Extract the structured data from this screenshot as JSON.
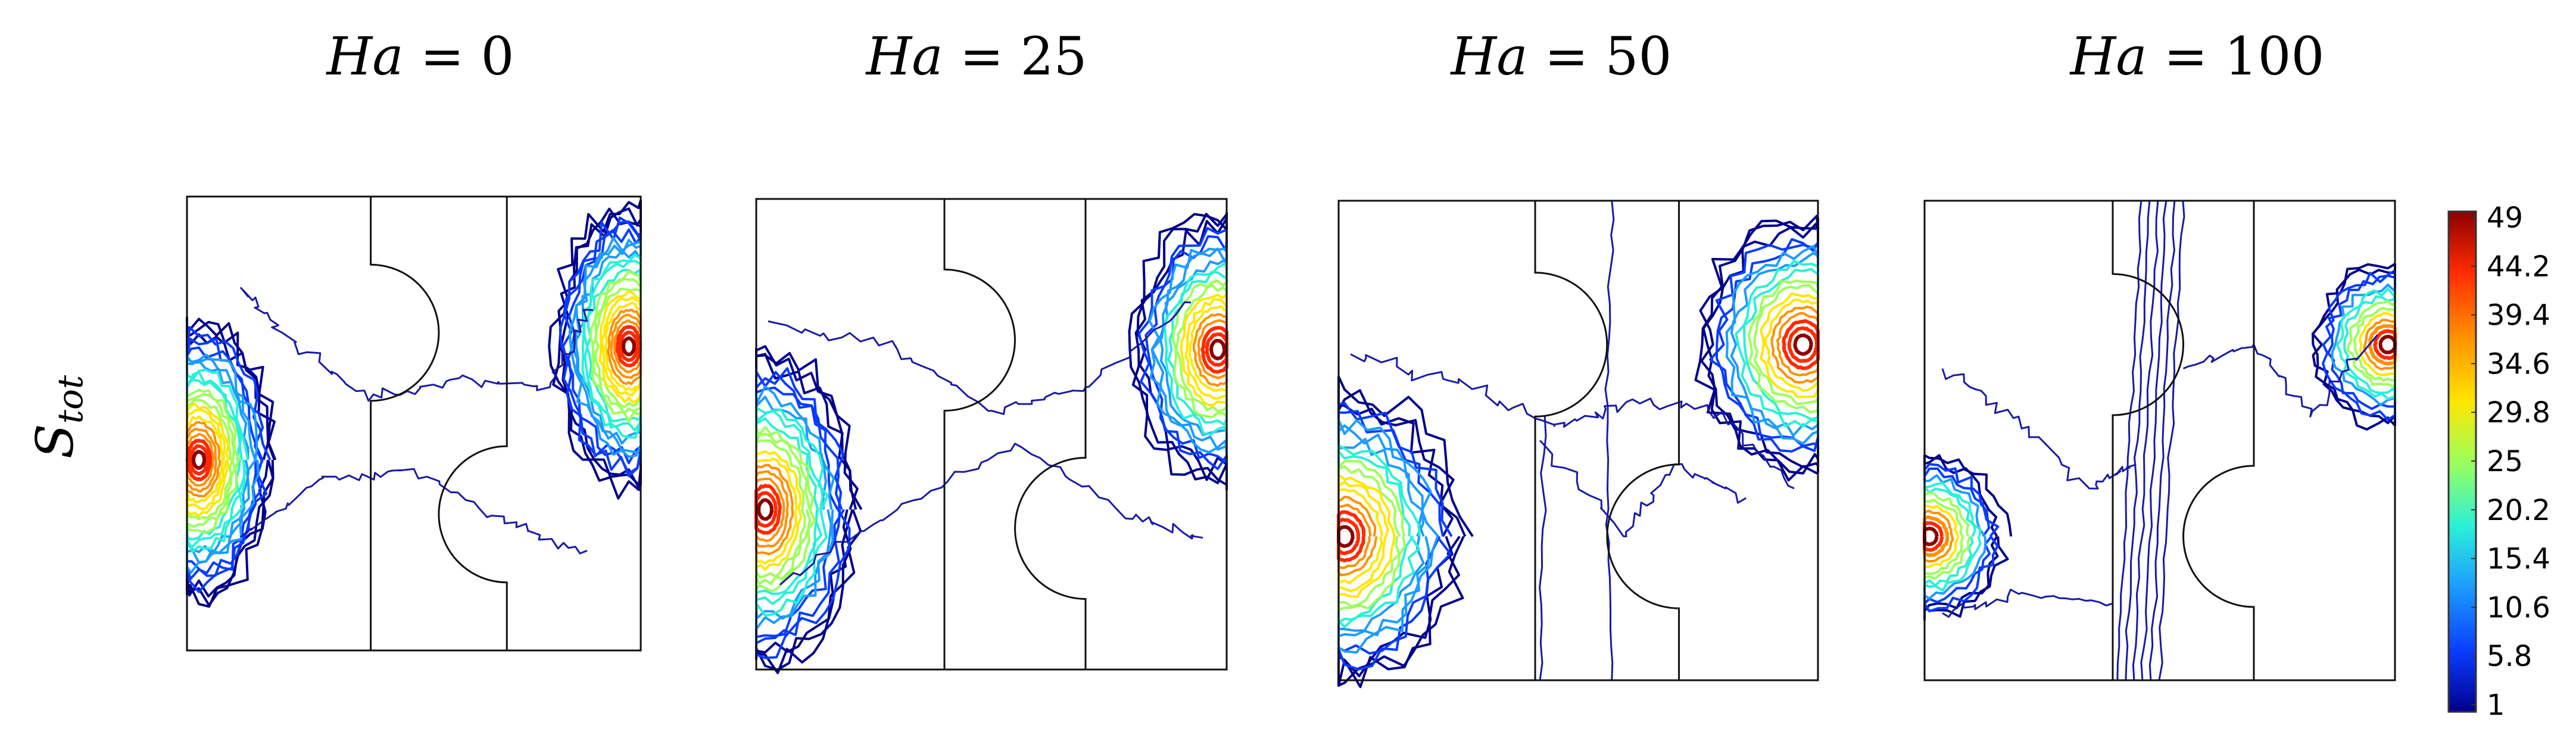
{
  "chart_data": {
    "type": "contour",
    "variable_label_main": "S",
    "variable_label_sub": "tot",
    "panels": [
      {
        "title_var": "Ha",
        "title_value": "0"
      },
      {
        "title_var": "Ha",
        "title_value": "25"
      },
      {
        "title_var": "Ha",
        "title_value": "50"
      },
      {
        "title_var": "Ha",
        "title_value": "100"
      }
    ],
    "colorbar": {
      "min": 1,
      "max": 49,
      "ticks": [
        "49",
        "44.2",
        "39.4",
        "34.6",
        "29.8",
        "25",
        "20.2",
        "15.4",
        "10.6",
        "5.8",
        "1"
      ],
      "colors": [
        "#8b0000",
        "#ff2a00",
        "#ff9000",
        "#ffe600",
        "#9cff5a",
        "#2af0d8",
        "#1c9cff",
        "#0a3cff",
        "#00008b"
      ]
    }
  }
}
